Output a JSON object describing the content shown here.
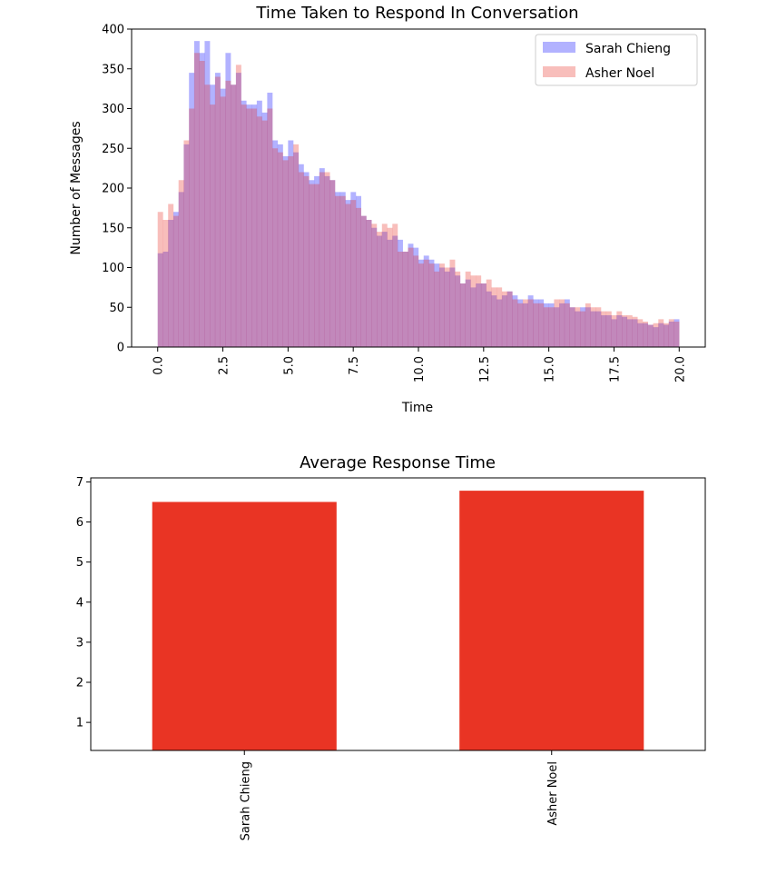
{
  "colors": {
    "series_a": "#0000ff",
    "series_b": "#e8281e",
    "bar": "#e93424"
  },
  "chart_data": [
    {
      "type": "histogram",
      "title": "Time Taken to Respond In Conversation",
      "xlabel": "Time",
      "ylabel": "Number of Messages",
      "xlim": [
        -1,
        21
      ],
      "ylim": [
        0,
        400
      ],
      "bin_start": 0,
      "bin_width": 0.2,
      "xticks": [
        "0.0",
        "2.5",
        "5.0",
        "7.5",
        "10.0",
        "12.5",
        "15.0",
        "17.5",
        "20.0"
      ],
      "yticks": [
        "0",
        "50",
        "100",
        "150",
        "200",
        "250",
        "300",
        "350",
        "400"
      ],
      "alpha": 0.3,
      "legend": "top-right",
      "series": [
        {
          "name": "Sarah Chieng",
          "values": [
            118,
            120,
            160,
            170,
            195,
            255,
            345,
            385,
            370,
            385,
            330,
            345,
            325,
            370,
            330,
            345,
            310,
            305,
            305,
            310,
            295,
            320,
            260,
            255,
            240,
            260,
            245,
            230,
            220,
            210,
            215,
            225,
            215,
            210,
            195,
            195,
            185,
            195,
            190,
            165,
            160,
            150,
            140,
            145,
            135,
            140,
            135,
            120,
            130,
            125,
            110,
            115,
            110,
            105,
            100,
            95,
            100,
            90,
            80,
            85,
            75,
            80,
            80,
            70,
            65,
            60,
            65,
            70,
            65,
            60,
            55,
            65,
            60,
            60,
            55,
            55,
            50,
            55,
            60,
            50,
            45,
            50,
            50,
            45,
            45,
            40,
            40,
            35,
            40,
            38,
            35,
            35,
            30,
            30,
            28,
            25,
            30,
            28,
            32,
            35
          ]
        },
        {
          "name": "Asher Noel",
          "values": [
            170,
            160,
            180,
            165,
            210,
            260,
            300,
            370,
            360,
            330,
            305,
            340,
            315,
            335,
            330,
            355,
            305,
            300,
            300,
            290,
            285,
            300,
            250,
            245,
            235,
            240,
            255,
            220,
            215,
            205,
            205,
            220,
            220,
            210,
            190,
            190,
            180,
            185,
            175,
            165,
            160,
            155,
            145,
            155,
            150,
            155,
            120,
            120,
            125,
            115,
            105,
            110,
            105,
            95,
            105,
            100,
            110,
            95,
            80,
            95,
            90,
            90,
            80,
            85,
            75,
            75,
            70,
            70,
            60,
            55,
            60,
            60,
            55,
            55,
            50,
            50,
            60,
            60,
            55,
            50,
            50,
            45,
            55,
            50,
            50,
            45,
            45,
            40,
            45,
            40,
            40,
            38,
            35,
            32,
            28,
            30,
            35,
            30,
            35,
            32
          ]
        }
      ]
    },
    {
      "type": "bar",
      "title": "Average Response Time",
      "categories": [
        "Sarah Chieng",
        "Asher Noel"
      ],
      "values": [
        6.5,
        6.78
      ],
      "ylim": [
        0.3,
        7.1
      ],
      "yticks": [
        "1",
        "2",
        "3",
        "4",
        "5",
        "6",
        "7"
      ]
    }
  ]
}
